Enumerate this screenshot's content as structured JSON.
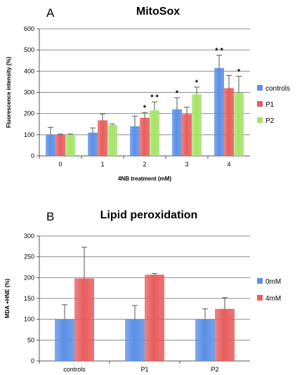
{
  "chart_data": [
    {
      "type": "bar",
      "panel_label": "A",
      "title": "MitoSox",
      "xlabel": "4NB treatment (mM)",
      "ylabel": "Fluorescence intensity (%)",
      "ylim": [
        0,
        600
      ],
      "yticks": [
        0,
        100,
        200,
        300,
        400,
        500,
        600
      ],
      "categories": [
        "0",
        "1",
        "2",
        "3",
        "4"
      ],
      "grid": true,
      "legend_position": "right",
      "series": [
        {
          "name": "controls",
          "color": "#5b8fe6",
          "values": [
            100,
            110,
            140,
            220,
            415
          ],
          "errors": [
            35,
            22,
            48,
            55,
            60
          ]
        },
        {
          "name": "P1",
          "color": "#e85d5d",
          "values": [
            100,
            168,
            180,
            197,
            320
          ],
          "errors": [
            3,
            30,
            25,
            33,
            60
          ]
        },
        {
          "name": "P2",
          "color": "#a6e36a",
          "values": [
            100,
            145,
            215,
            290,
            298
          ],
          "errors": [
            3,
            5,
            40,
            35,
            78
          ]
        }
      ],
      "annotations": [
        {
          "category": "2",
          "series": "P1",
          "text": "*"
        },
        {
          "category": "2",
          "series": "P2",
          "text": "* *"
        },
        {
          "category": "3",
          "series": "controls",
          "text": "*"
        },
        {
          "category": "3",
          "series": "P2",
          "text": "*"
        },
        {
          "category": "4",
          "series": "controls",
          "text": "* *"
        },
        {
          "category": "4",
          "series": "P2",
          "text": "*"
        }
      ]
    },
    {
      "type": "bar",
      "panel_label": "B",
      "title": "Lipid peroxidation",
      "xlabel": "",
      "ylabel": "MDA +HNE (%)",
      "ylim": [
        0,
        300
      ],
      "yticks": [
        0,
        50,
        100,
        150,
        200,
        250,
        300
      ],
      "categories": [
        "controls",
        "P1",
        "P2"
      ],
      "grid": true,
      "legend_position": "right",
      "series": [
        {
          "name": "0mM",
          "color": "#5b8fe6",
          "values": [
            100,
            100,
            100
          ],
          "errors": [
            35,
            33,
            25
          ]
        },
        {
          "name": "4mM",
          "color": "#e85d5d",
          "values": [
            198,
            207,
            125
          ],
          "errors": [
            75,
            3,
            27
          ]
        }
      ],
      "annotations": []
    }
  ]
}
